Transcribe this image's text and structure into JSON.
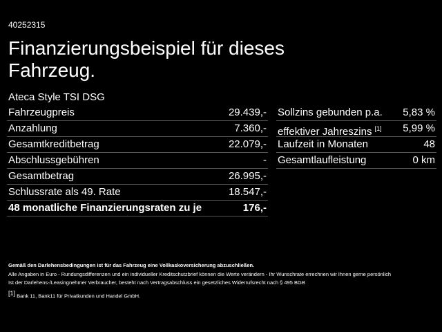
{
  "header": {
    "id": "40252315",
    "title_lines": [
      "Finanzierungsbeispiel für dieses",
      "Fahrzeug."
    ],
    "model": "Ateca Style TSI DSG"
  },
  "left_table": {
    "rows": [
      [
        "Fahrzeugpreis",
        "29.439,-"
      ],
      [
        "Anzahlung",
        "7.360,-"
      ],
      [
        "Gesamtkreditbetrag",
        "22.079,-"
      ],
      [
        "Abschlussgebühren",
        "-"
      ],
      [
        "Gesamtbetrag",
        "26.995,-"
      ],
      [
        "Schlussrate als 49. Rate",
        "18.547,-"
      ],
      [
        "48 monatliche Finanzierungsraten zu je",
        "176,-"
      ]
    ]
  },
  "right_table": {
    "rows": [
      [
        "Sollzins gebunden p.a.",
        "5,83 %"
      ],
      [
        "effektiver Jahreszins",
        "5,99 %"
      ],
      [
        "Laufzeit in Monaten",
        "48"
      ],
      [
        "Gesamtlaufleistung",
        "0 km"
      ]
    ],
    "footnote_ref": "[1]"
  },
  "footnotes": {
    "insurance": "Gemäß den Darlehensbedingungen ist für das Fahrzeug eine Vollkaskoversicherung abzuschließen.",
    "notes": [
      "Alle Angaben in Euro - Rundungsdifferenzen und ein individueller Kreditschutzbrief können die Werte verändern - Ihr Wunschrate errechnen wir Ihnen gerne persönlich",
      "Ist der Darlehens-/Leasingnehmer Verbraucher, besteht nach Vertragsabschluss ein gesetzliches Widerrufsrecht nach § 495 BGB"
    ],
    "bank_ref": "[1]",
    "bank": "Bank 11, Bank11 für Privatkunden und Handel GmbH."
  }
}
